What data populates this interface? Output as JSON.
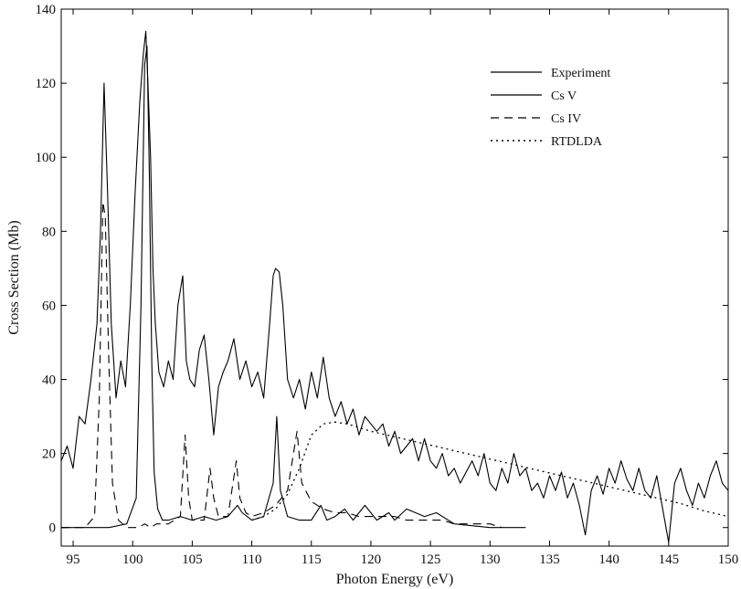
{
  "chart_data": {
    "type": "line",
    "title": "",
    "xlabel": "Photon Energy (eV)",
    "ylabel": "Cross Section (Mb)",
    "xlim": [
      94,
      150
    ],
    "ylim": [
      -5,
      140
    ],
    "xticks": [
      95,
      100,
      105,
      110,
      115,
      120,
      125,
      130,
      135,
      140,
      145,
      150
    ],
    "yticks": [
      0,
      20,
      40,
      60,
      80,
      100,
      120,
      140
    ],
    "grid": false,
    "legend_position": "top-right",
    "series": [
      {
        "name": "Experiment",
        "style": "solid",
        "x": [
          94,
          94.5,
          95,
          95.5,
          96,
          96.5,
          97,
          97.3,
          97.6,
          97.9,
          98.2,
          98.6,
          99,
          99.4,
          99.8,
          100.2,
          100.6,
          100.9,
          101.1,
          101.3,
          101.5,
          101.7,
          101.9,
          102.2,
          102.6,
          103,
          103.4,
          103.8,
          104.2,
          104.5,
          104.8,
          105.2,
          105.6,
          106,
          106.4,
          106.8,
          107.2,
          107.6,
          108,
          108.5,
          109,
          109.5,
          110,
          110.5,
          111,
          111.5,
          111.8,
          112,
          112.3,
          112.6,
          113,
          113.5,
          114,
          114.5,
          115,
          115.5,
          116,
          116.5,
          117,
          117.5,
          118,
          118.5,
          119,
          119.5,
          120,
          120.5,
          121,
          121.5,
          122,
          122.5,
          123,
          123.5,
          124,
          124.5,
          125,
          125.5,
          126,
          126.5,
          127,
          127.5,
          128,
          128.5,
          129,
          129.5,
          130,
          130.5,
          131,
          131.5,
          132,
          132.5,
          133,
          133.5,
          134,
          134.5,
          135,
          135.5,
          136,
          136.5,
          137,
          137.5,
          138,
          138.5,
          139,
          139.5,
          140,
          140.5,
          141,
          141.5,
          142,
          142.5,
          143,
          143.5,
          144,
          144.5,
          145,
          145.5,
          146,
          146.5,
          147,
          147.5,
          148,
          148.5,
          149,
          149.5,
          150
        ],
        "y": [
          18,
          22,
          16,
          30,
          28,
          40,
          55,
          80,
          120,
          90,
          55,
          35,
          45,
          38,
          60,
          90,
          115,
          128,
          134,
          118,
          100,
          70,
          55,
          42,
          38,
          45,
          40,
          60,
          68,
          45,
          40,
          38,
          48,
          52,
          40,
          25,
          38,
          42,
          45,
          51,
          40,
          45,
          38,
          42,
          35,
          55,
          68,
          70,
          69,
          60,
          40,
          35,
          40,
          32,
          42,
          35,
          46,
          35,
          30,
          34,
          28,
          32,
          25,
          30,
          28,
          26,
          28,
          22,
          26,
          20,
          22,
          24,
          18,
          24,
          18,
          16,
          20,
          14,
          16,
          12,
          15,
          18,
          14,
          20,
          12,
          10,
          16,
          12,
          20,
          14,
          16,
          10,
          12,
          8,
          14,
          10,
          15,
          8,
          12,
          6,
          -2,
          10,
          14,
          9,
          16,
          12,
          18,
          13,
          10,
          16,
          10,
          8,
          14,
          5,
          -4,
          12,
          16,
          10,
          6,
          12,
          8,
          14,
          18,
          12,
          10
        ],
        "color": "#000000"
      },
      {
        "name": "Cs V",
        "style": "solid",
        "x": [
          94,
          98,
          99.5,
          100.3,
          100.7,
          101,
          101.2,
          101.4,
          101.6,
          101.8,
          102.1,
          102.5,
          103,
          104,
          105,
          106,
          107,
          108,
          108.8,
          109.2,
          110,
          111,
          111.8,
          112.1,
          112.4,
          113,
          114,
          115,
          115.8,
          116.3,
          117,
          117.8,
          118.5,
          119.5,
          120.5,
          121.5,
          122,
          123,
          124.5,
          125.5,
          127,
          130,
          133
        ],
        "y": [
          0,
          0,
          1,
          8,
          60,
          125,
          130,
          95,
          45,
          15,
          5,
          2,
          2,
          3,
          2,
          3,
          2,
          3,
          6,
          4,
          2,
          3,
          12,
          30,
          10,
          3,
          2,
          2,
          6,
          2,
          3,
          5,
          2,
          6,
          2,
          4,
          2,
          5,
          3,
          4,
          1,
          0,
          0
        ],
        "color": "#000000"
      },
      {
        "name": "Cs IV",
        "style": "dashed",
        "x": [
          94,
          96,
          96.8,
          97.2,
          97.5,
          97.7,
          98,
          98.3,
          98.8,
          99.5,
          100.5,
          101,
          101.5,
          102,
          103,
          104,
          104.4,
          104.7,
          105,
          106,
          106.5,
          106.8,
          107.2,
          108,
          108.7,
          109,
          109.5,
          110,
          111,
          112,
          113,
          113.8,
          114.2,
          115,
          116,
          117,
          118,
          119,
          120,
          121,
          122,
          123,
          124,
          125,
          126,
          127,
          128,
          129,
          130,
          131
        ],
        "y": [
          0,
          0,
          3,
          35,
          88,
          84,
          45,
          12,
          2,
          0,
          0,
          1,
          0,
          1,
          1,
          3,
          25,
          8,
          2,
          2,
          16,
          8,
          3,
          3,
          18,
          8,
          4,
          3,
          4,
          6,
          10,
          26,
          12,
          7,
          5,
          4,
          4,
          3,
          3,
          3,
          3,
          2,
          2,
          2,
          2,
          1,
          1,
          1,
          1,
          0
        ],
        "color": "#000000"
      },
      {
        "name": "RTDLDA",
        "style": "dotted",
        "x": [
          110,
          111,
          112,
          113,
          114,
          115,
          116,
          117,
          118,
          120,
          122,
          124,
          126,
          128,
          130,
          132,
          134,
          136,
          138,
          140,
          142,
          144,
          146,
          148,
          150
        ],
        "y": [
          2,
          3,
          5,
          9,
          16,
          25,
          28,
          28.5,
          28,
          26,
          24.5,
          23,
          21.5,
          20,
          18.5,
          17,
          15.5,
          14,
          12.5,
          11,
          9.5,
          8,
          6.5,
          4.5,
          3
        ],
        "color": "#000000"
      }
    ]
  }
}
